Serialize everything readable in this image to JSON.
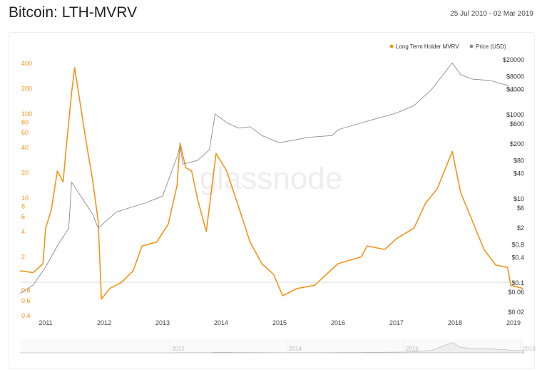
{
  "header": {
    "title": "Bitcoin: LTH-MVRV",
    "date_range": "25 Jul 2010 - 02 Mar 2019"
  },
  "watermark": "glassnode",
  "chart_data": {
    "type": "line",
    "title": "Bitcoin: LTH-MVRV",
    "legend": {
      "placement": "top-right",
      "entries": [
        "Long Term Holder MVRV",
        "Price (USD)"
      ]
    },
    "colors": {
      "mvrv": "#f7931a",
      "price": "#8c8c8c"
    },
    "x_ticks": [
      "2011",
      "2012",
      "2013",
      "2014",
      "2015",
      "2016",
      "2017",
      "2018",
      "2019"
    ],
    "navigator_ticks": [
      "2012",
      "2014",
      "2016",
      "2018"
    ],
    "y_left": {
      "scale": "log",
      "ticks": [
        "400",
        "200",
        "100",
        "80",
        "60",
        "40",
        "20",
        "10",
        "8",
        "6",
        "4",
        "2",
        "0.8",
        "0.6",
        "0.4"
      ],
      "range": [
        0.4,
        400
      ]
    },
    "y_right": {
      "scale": "log",
      "ticks": [
        "$20000",
        "$8000",
        "$4000",
        "$1000",
        "$600",
        "$200",
        "$80",
        "$40",
        "$10",
        "$6",
        "$2",
        "$0.8",
        "$0.4",
        "$0.1",
        "$0.06",
        "$0.02"
      ],
      "range": [
        0.02,
        20000
      ]
    },
    "reference_line": 1,
    "series": [
      {
        "name": "Long Term Holder MVRV",
        "axis": "left",
        "points": [
          [
            "2010-07-25",
            1.37
          ],
          [
            "2010-10-15",
            1.3
          ],
          [
            "2010-12-15",
            1.66
          ],
          [
            "2011-01-01",
            4.4
          ],
          [
            "2011-02-05",
            7.2
          ],
          [
            "2011-03-15",
            21
          ],
          [
            "2011-04-20",
            15.6
          ],
          [
            "2011-05-08",
            37
          ],
          [
            "2011-06-12",
            180
          ],
          [
            "2011-07-01",
            355
          ],
          [
            "2011-08-08",
            121
          ],
          [
            "2011-09-12",
            45
          ],
          [
            "2011-10-20",
            17
          ],
          [
            "2011-11-25",
            5.3
          ],
          [
            "2011-12-15",
            0.63
          ],
          [
            "2012-02-05",
            0.84
          ],
          [
            "2012-04-20",
            1.0
          ],
          [
            "2012-07-01",
            1.37
          ],
          [
            "2012-08-25",
            2.7
          ],
          [
            "2012-11-25",
            3.0
          ],
          [
            "2013-02-05",
            4.9
          ],
          [
            "2013-04-01",
            14
          ],
          [
            "2013-04-20",
            45
          ],
          [
            "2013-05-25",
            23
          ],
          [
            "2013-07-01",
            21
          ],
          [
            "2013-08-08",
            9.6
          ],
          [
            "2013-10-01",
            4
          ],
          [
            "2013-11-05",
            14
          ],
          [
            "2013-12-01",
            34
          ],
          [
            "2014-02-05",
            21
          ],
          [
            "2014-04-20",
            7.9
          ],
          [
            "2014-07-01",
            3
          ],
          [
            "2014-09-12",
            1.66
          ],
          [
            "2014-11-25",
            1.24
          ],
          [
            "2015-01-20",
            0.69
          ],
          [
            "2015-04-20",
            0.84
          ],
          [
            "2015-08-08",
            0.92
          ],
          [
            "2015-10-20",
            1.24
          ],
          [
            "2016-01-01",
            1.66
          ],
          [
            "2016-05-25",
            2.0
          ],
          [
            "2016-07-01",
            2.7
          ],
          [
            "2016-10-20",
            2.45
          ],
          [
            "2017-01-01",
            3.3
          ],
          [
            "2017-04-20",
            4.4
          ],
          [
            "2017-07-01",
            8.7
          ],
          [
            "2017-09-12",
            12.9
          ],
          [
            "2017-12-15",
            36
          ],
          [
            "2018-02-05",
            11.7
          ],
          [
            "2018-04-20",
            5.3
          ],
          [
            "2018-07-01",
            2.45
          ],
          [
            "2018-09-12",
            1.6
          ],
          [
            "2018-11-25",
            1.5
          ],
          [
            "2018-12-15",
            0.92
          ],
          [
            "2019-03-02",
            0.84
          ]
        ]
      },
      {
        "name": "Price (USD)",
        "axis": "right",
        "points": [
          [
            "2010-07-25",
            0.056
          ],
          [
            "2010-10-15",
            0.089
          ],
          [
            "2011-01-01",
            0.24
          ],
          [
            "2011-03-15",
            0.76
          ],
          [
            "2011-05-25",
            2.0
          ],
          [
            "2011-06-12",
            25
          ],
          [
            "2011-08-08",
            11.6
          ],
          [
            "2011-10-20",
            4.4
          ],
          [
            "2011-11-25",
            2.0
          ],
          [
            "2012-03-15",
            4.8
          ],
          [
            "2012-07-01",
            6.5
          ],
          [
            "2012-09-12",
            7.9
          ],
          [
            "2013-01-01",
            11.6
          ],
          [
            "2013-04-01",
            100
          ],
          [
            "2013-04-20",
            180
          ],
          [
            "2013-05-08",
            67
          ],
          [
            "2013-08-08",
            82
          ],
          [
            "2013-10-20",
            147
          ],
          [
            "2013-11-25",
            1040
          ],
          [
            "2014-02-05",
            650
          ],
          [
            "2014-04-20",
            480
          ],
          [
            "2014-07-01",
            520
          ],
          [
            "2014-09-12",
            320
          ],
          [
            "2015-01-01",
            216
          ],
          [
            "2015-07-01",
            290
          ],
          [
            "2015-11-25",
            320
          ],
          [
            "2016-01-01",
            440
          ],
          [
            "2016-07-01",
            700
          ],
          [
            "2017-01-01",
            1100
          ],
          [
            "2017-04-20",
            1650
          ],
          [
            "2017-08-08",
            4000
          ],
          [
            "2017-12-15",
            17000
          ],
          [
            "2018-02-05",
            9000
          ],
          [
            "2018-04-20",
            7000
          ],
          [
            "2018-08-08",
            6500
          ],
          [
            "2018-11-25",
            5000
          ],
          [
            "2018-12-15",
            3600
          ],
          [
            "2019-03-02",
            3800
          ]
        ]
      }
    ]
  }
}
